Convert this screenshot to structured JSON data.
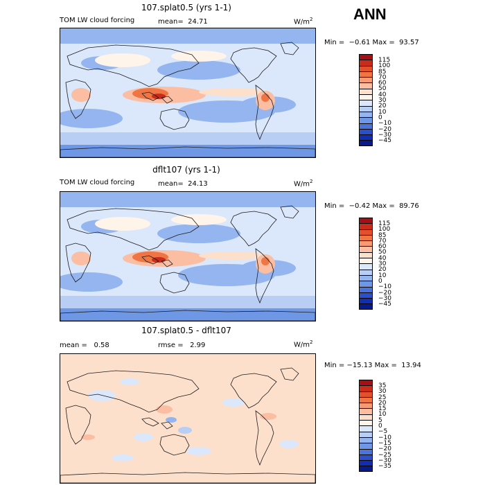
{
  "header": {
    "season": "ANN"
  },
  "panels": [
    {
      "title": "107.splat0.5 (yrs 1-1)",
      "left_label": "TOM LW cloud forcing",
      "mid_label": "mean=  24.71",
      "unit": "W/m",
      "unit_sup": "2",
      "minmax": "Min =  −0.61 Max =  93.57",
      "colorbar_labels": [
        "115",
        "100",
        "85",
        "70",
        "60",
        "50",
        "40",
        "30",
        "20",
        "10",
        "0",
        "−10",
        "−20",
        "−30",
        "−45"
      ],
      "colorbar_colors": [
        "#a50f15",
        "#cb2b1a",
        "#e2502c",
        "#f07545",
        "#f79a73",
        "#fbbea3",
        "#fde0cc",
        "#fff4ea",
        "#dbe7fa",
        "#b8cef5",
        "#94b5ef",
        "#6e97e6",
        "#4a74da",
        "#2a4fc9",
        "#122eb0",
        "#061a8c"
      ]
    },
    {
      "title": "dflt107 (yrs 1-1)",
      "left_label": "TOM LW cloud forcing",
      "mid_label": "mean=  24.13",
      "unit": "W/m",
      "unit_sup": "2",
      "minmax": "Min =  −0.42 Max =  89.76",
      "colorbar_labels": [
        "115",
        "100",
        "85",
        "70",
        "60",
        "50",
        "40",
        "30",
        "20",
        "10",
        "0",
        "−10",
        "−20",
        "−30",
        "−45"
      ],
      "colorbar_colors": [
        "#a50f15",
        "#cb2b1a",
        "#e2502c",
        "#f07545",
        "#f79a73",
        "#fbbea3",
        "#fde0cc",
        "#fff4ea",
        "#dbe7fa",
        "#b8cef5",
        "#94b5ef",
        "#6e97e6",
        "#4a74da",
        "#2a4fc9",
        "#122eb0",
        "#061a8c"
      ]
    },
    {
      "title": "107.splat0.5 - dflt107",
      "left_label": "mean =   0.58",
      "mid_label": "rmse =   2.99",
      "unit": "W/m",
      "unit_sup": "2",
      "minmax": "Min = −15.13 Max =  13.94",
      "colorbar_labels": [
        "35",
        "30",
        "25",
        "20",
        "15",
        "10",
        "5",
        "0",
        "−5",
        "−10",
        "−15",
        "−20",
        "−25",
        "−30",
        "−35"
      ],
      "colorbar_colors": [
        "#a50f15",
        "#cb2b1a",
        "#e2502c",
        "#f07545",
        "#f79a73",
        "#fbbea3",
        "#fde0cc",
        "#fff4ea",
        "#dbe7fa",
        "#b8cef5",
        "#94b5ef",
        "#6e97e6",
        "#4a74da",
        "#2a4fc9",
        "#122eb0",
        "#061a8c"
      ]
    }
  ],
  "map_colors": {
    "blue_dark": "#6e97e6",
    "blue_mid": "#94b5ef",
    "blue_light": "#b8cef5",
    "pale": "#dbe7fa",
    "cream": "#fff4ea",
    "peach": "#fde0cc",
    "salmon": "#fbbea3",
    "red": "#f07545",
    "red_dark": "#cb2b1a",
    "coast": "#1a1a1a"
  }
}
